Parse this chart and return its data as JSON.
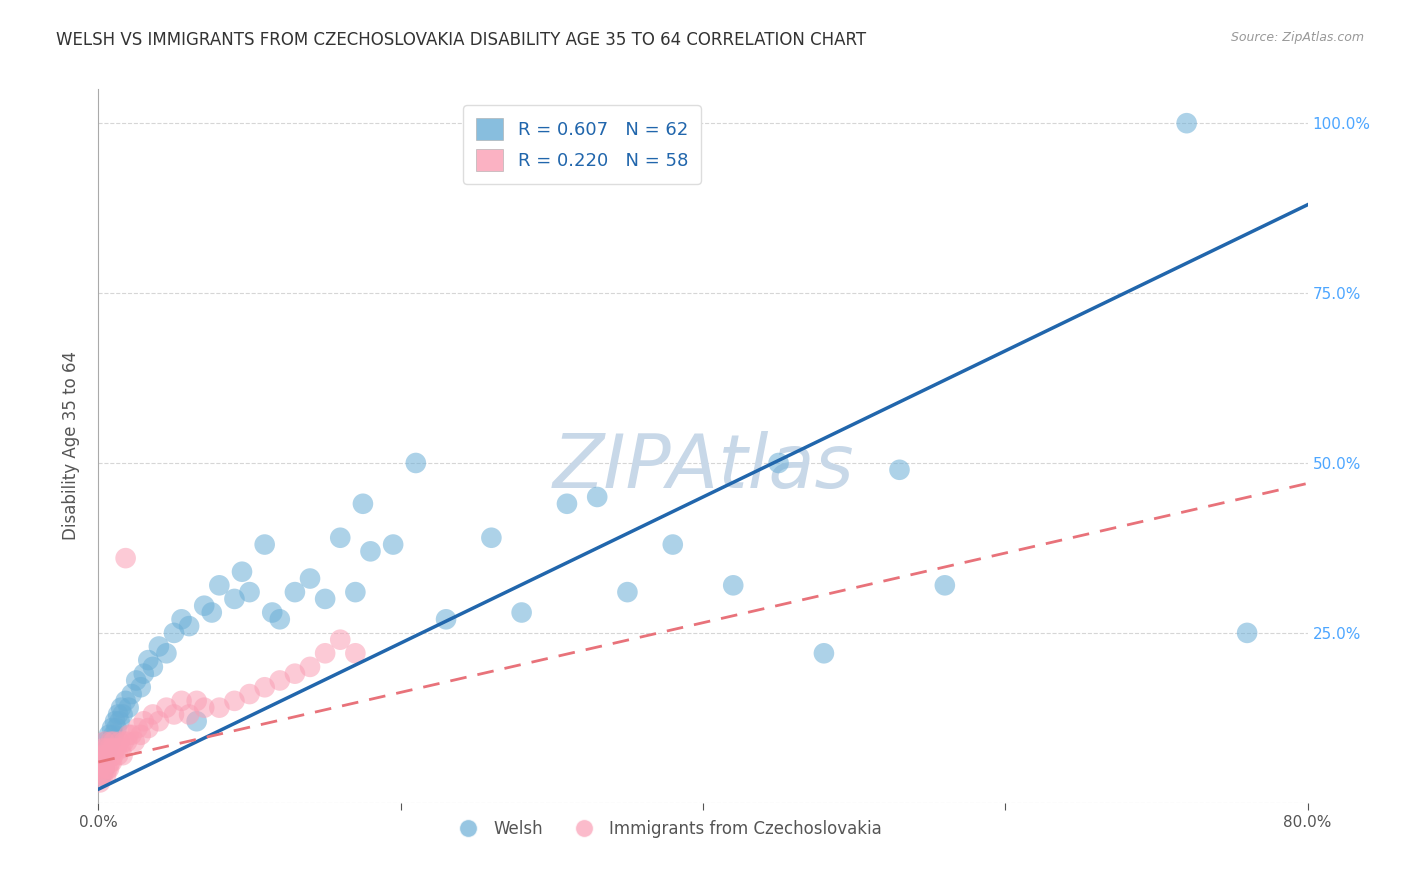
{
  "title": "WELSH VS IMMIGRANTS FROM CZECHOSLOVAKIA DISABILITY AGE 35 TO 64 CORRELATION CHART",
  "source": "Source: ZipAtlas.com",
  "xlabel_welsh": "Welsh",
  "xlabel_czech": "Immigrants from Czechoslovakia",
  "ylabel": "Disability Age 35 to 64",
  "r_welsh": 0.607,
  "n_welsh": 62,
  "r_czech": 0.22,
  "n_czech": 58,
  "xlim": [
    0,
    0.8
  ],
  "ylim": [
    0,
    1.05
  ],
  "color_welsh": "#6baed6",
  "color_czech": "#fa9fb5",
  "color_welsh_line": "#2166ac",
  "color_czech_line": "#e8727a",
  "background_color": "#ffffff",
  "watermark": "ZIPAtlas",
  "watermark_color": "#c8d8e8",
  "welsh_x": [
    0.002,
    0.003,
    0.004,
    0.005,
    0.005,
    0.006,
    0.007,
    0.008,
    0.009,
    0.01,
    0.011,
    0.012,
    0.013,
    0.014,
    0.015,
    0.016,
    0.018,
    0.02,
    0.022,
    0.025,
    0.028,
    0.03,
    0.033,
    0.036,
    0.04,
    0.045,
    0.05,
    0.055,
    0.06,
    0.065,
    0.07,
    0.075,
    0.08,
    0.09,
    0.095,
    0.1,
    0.11,
    0.115,
    0.12,
    0.13,
    0.14,
    0.15,
    0.16,
    0.17,
    0.175,
    0.18,
    0.195,
    0.21,
    0.23,
    0.26,
    0.28,
    0.31,
    0.33,
    0.35,
    0.38,
    0.42,
    0.45,
    0.48,
    0.53,
    0.56,
    0.72,
    0.76
  ],
  "welsh_y": [
    0.04,
    0.06,
    0.05,
    0.07,
    0.09,
    0.08,
    0.1,
    0.09,
    0.11,
    0.1,
    0.12,
    0.11,
    0.13,
    0.12,
    0.14,
    0.13,
    0.15,
    0.14,
    0.16,
    0.18,
    0.17,
    0.19,
    0.21,
    0.2,
    0.23,
    0.22,
    0.25,
    0.27,
    0.26,
    0.12,
    0.29,
    0.28,
    0.32,
    0.3,
    0.34,
    0.31,
    0.38,
    0.28,
    0.27,
    0.31,
    0.33,
    0.3,
    0.39,
    0.31,
    0.44,
    0.37,
    0.38,
    0.5,
    0.27,
    0.39,
    0.28,
    0.44,
    0.45,
    0.31,
    0.38,
    0.32,
    0.5,
    0.22,
    0.49,
    0.32,
    1.0,
    0.25
  ],
  "czech_x": [
    0.001,
    0.001,
    0.002,
    0.002,
    0.002,
    0.003,
    0.003,
    0.003,
    0.004,
    0.004,
    0.004,
    0.005,
    0.005,
    0.005,
    0.006,
    0.006,
    0.007,
    0.007,
    0.008,
    0.008,
    0.009,
    0.009,
    0.01,
    0.01,
    0.011,
    0.012,
    0.013,
    0.014,
    0.015,
    0.016,
    0.017,
    0.018,
    0.019,
    0.02,
    0.022,
    0.024,
    0.026,
    0.028,
    0.03,
    0.033,
    0.036,
    0.04,
    0.045,
    0.05,
    0.055,
    0.06,
    0.065,
    0.07,
    0.08,
    0.09,
    0.1,
    0.11,
    0.12,
    0.13,
    0.14,
    0.15,
    0.16,
    0.17
  ],
  "czech_y": [
    0.03,
    0.05,
    0.04,
    0.06,
    0.07,
    0.04,
    0.06,
    0.08,
    0.05,
    0.07,
    0.09,
    0.04,
    0.06,
    0.08,
    0.05,
    0.07,
    0.05,
    0.08,
    0.06,
    0.09,
    0.06,
    0.08,
    0.07,
    0.09,
    0.08,
    0.08,
    0.07,
    0.09,
    0.08,
    0.07,
    0.09,
    0.36,
    0.09,
    0.1,
    0.1,
    0.09,
    0.11,
    0.1,
    0.12,
    0.11,
    0.13,
    0.12,
    0.14,
    0.13,
    0.15,
    0.13,
    0.15,
    0.14,
    0.14,
    0.15,
    0.16,
    0.17,
    0.18,
    0.19,
    0.2,
    0.22,
    0.24,
    0.22
  ],
  "blue_line_x0": 0.0,
  "blue_line_y0": 0.02,
  "blue_line_x1": 0.8,
  "blue_line_y1": 0.88,
  "pink_line_x0": 0.0,
  "pink_line_y0": 0.06,
  "pink_line_x1": 0.8,
  "pink_line_y1": 0.47
}
